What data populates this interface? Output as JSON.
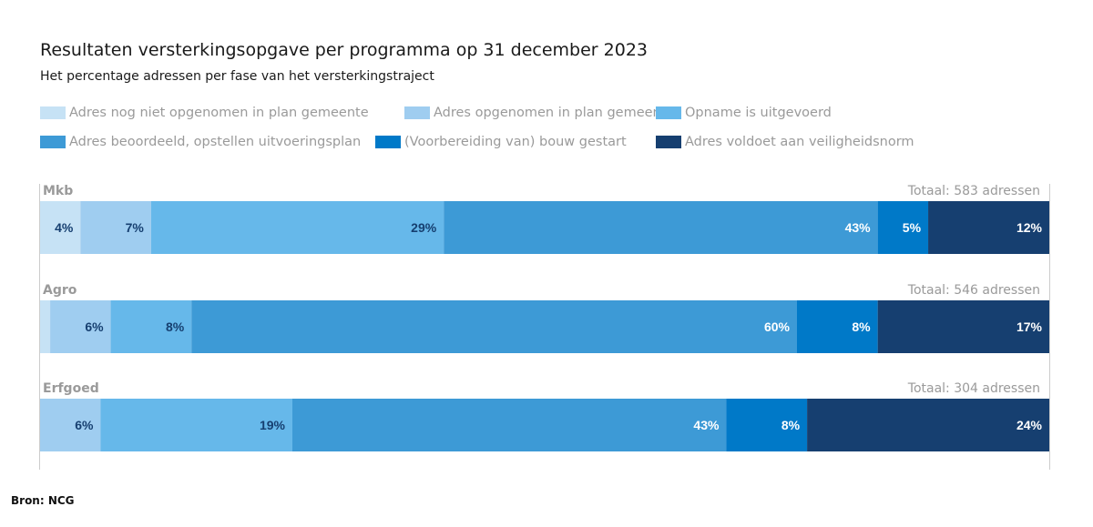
{
  "chart_data": {
    "type": "bar",
    "orientation": "horizontal-stacked-100",
    "title": "Resultaten versterkingsopgave per programma op 31 december 2023",
    "subtitle": "Het percentage adressen per fase van het versterkingstraject",
    "categories": [
      "Mkb",
      "Agro",
      "Erfgoed"
    ],
    "totals": [
      "Totaal: 583 adressen",
      "Totaal: 546 adressen",
      "Totaal: 304 adressen"
    ],
    "series": [
      {
        "name": "Adres nog niet opgenomen in plan gemeente",
        "color": "#c6e2f5",
        "label_color": "#163f70",
        "values": [
          4,
          1,
          0
        ]
      },
      {
        "name": "Adres opgenomen in plan gemeente",
        "color": "#9fcdf0",
        "label_color": "#163f70",
        "values": [
          7,
          6,
          6
        ]
      },
      {
        "name": "Opname is uitgevoerd",
        "color": "#66b8ea",
        "label_color": "#163f70",
        "values": [
          29,
          8,
          19
        ]
      },
      {
        "name": "Adres beoordeeld, opstellen uitvoeringsplan",
        "color": "#3d9ad6",
        "label_color": "#ffffff",
        "values": [
          43,
          60,
          43
        ]
      },
      {
        "name": "(Voorbereiding van) bouw gestart",
        "color": "#0079c8",
        "label_color": "#ffffff",
        "values": [
          5,
          8,
          8
        ]
      },
      {
        "name": "Adres voldoet aan veiligheidsnorm",
        "color": "#163f70",
        "label_color": "#ffffff",
        "values": [
          12,
          17,
          24
        ]
      }
    ],
    "xlim": [
      0,
      100
    ],
    "legend_position": "top",
    "grid": false
  },
  "source": "Bron: NCG"
}
